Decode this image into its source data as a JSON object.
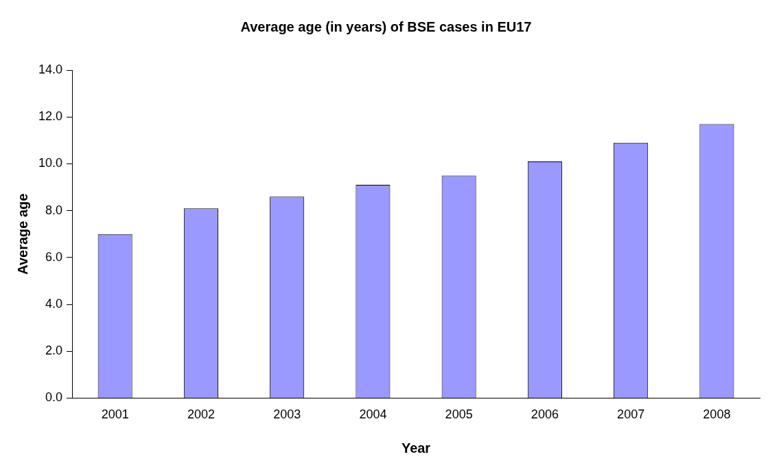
{
  "chart_data": {
    "type": "bar",
    "title": "Average age (in years) of BSE cases in EU17",
    "xlabel": "Year",
    "ylabel": "Average age",
    "categories": [
      "2001",
      "2002",
      "2003",
      "2004",
      "2005",
      "2006",
      "2007",
      "2008"
    ],
    "values": [
      7.0,
      8.1,
      8.6,
      9.1,
      9.5,
      10.1,
      10.9,
      11.7
    ],
    "color": "#9999ff",
    "ylim": [
      0,
      14
    ],
    "yticks": [
      {
        "value": 0,
        "label": "0.0"
      },
      {
        "value": 2,
        "label": "2.0"
      },
      {
        "value": 4,
        "label": "4.0"
      },
      {
        "value": 6,
        "label": "6.0"
      },
      {
        "value": 8,
        "label": "8.0"
      },
      {
        "value": 10,
        "label": "10.0"
      },
      {
        "value": 12,
        "label": "12.0"
      },
      {
        "value": 14,
        "label": "14.0"
      }
    ],
    "grid": false,
    "legend": false
  }
}
